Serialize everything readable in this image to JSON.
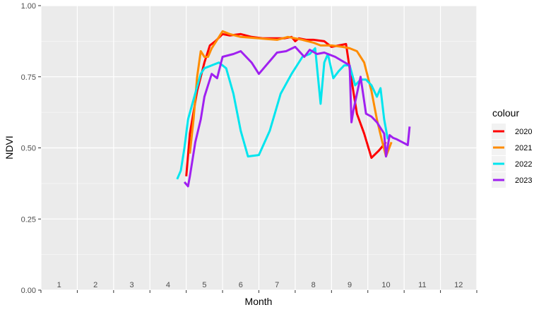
{
  "chart_data": {
    "type": "line",
    "xlabel": "Month",
    "ylabel": "NDVI",
    "xlim": [
      0.5,
      12.5
    ],
    "ylim": [
      0,
      1
    ],
    "y_ticks": [
      {
        "value": 0,
        "label": "0.00"
      },
      {
        "value": 0.25,
        "label": "0.25"
      },
      {
        "value": 0.5,
        "label": "0.50"
      },
      {
        "value": 0.75,
        "label": "0.75"
      },
      {
        "value": 1,
        "label": "1.00"
      }
    ],
    "x_tick_labels": [
      "1",
      "2",
      "3",
      "4",
      "5",
      "6",
      "7",
      "8",
      "9",
      "10",
      "11",
      "12"
    ],
    "grid": true,
    "legend": {
      "title": "colour",
      "position": "right"
    },
    "series": [
      {
        "name": "2020",
        "color": "#ff0000",
        "x": [
          4.5,
          4.6,
          4.8,
          5.0,
          5.15,
          5.3,
          5.5,
          5.7,
          6.0,
          6.3,
          6.6,
          7.0,
          7.2,
          7.4,
          7.5,
          7.6,
          7.8,
          8.0,
          8.3,
          8.5,
          8.7,
          8.9,
          9.0,
          9.2,
          9.4,
          9.6,
          9.8,
          10.0
        ],
        "y": [
          0.4,
          0.55,
          0.7,
          0.8,
          0.86,
          0.875,
          0.9,
          0.895,
          0.9,
          0.89,
          0.885,
          0.885,
          0.885,
          0.89,
          0.875,
          0.885,
          0.88,
          0.88,
          0.875,
          0.855,
          0.86,
          0.865,
          0.78,
          0.62,
          0.55,
          0.465,
          0.49,
          0.52
        ]
      },
      {
        "name": "2021",
        "color": "#ff8c00",
        "x": [
          4.6,
          4.7,
          4.8,
          4.9,
          5.0,
          5.1,
          5.2,
          5.35,
          5.5,
          5.7,
          6.0,
          6.5,
          7.0,
          7.3,
          7.5,
          7.7,
          8.0,
          8.2,
          8.5,
          8.8,
          9.0,
          9.2,
          9.4,
          9.6,
          9.75,
          9.9,
          10.0,
          10.15
        ],
        "y": [
          0.48,
          0.6,
          0.75,
          0.84,
          0.82,
          0.82,
          0.85,
          0.88,
          0.91,
          0.9,
          0.89,
          0.885,
          0.88,
          0.89,
          0.885,
          0.88,
          0.87,
          0.86,
          0.86,
          0.855,
          0.85,
          0.84,
          0.8,
          0.7,
          0.6,
          0.52,
          0.47,
          0.52
        ]
      },
      {
        "name": "2022",
        "color": "#00e5ee",
        "x": [
          4.25,
          4.35,
          4.45,
          4.55,
          4.7,
          4.9,
          5.0,
          5.2,
          5.4,
          5.6,
          5.8,
          6.0,
          6.2,
          6.5,
          6.8,
          7.1,
          7.4,
          7.7,
          7.9,
          8.05,
          8.2,
          8.3,
          8.4,
          8.55,
          8.7,
          8.85,
          9.0,
          9.15,
          9.3,
          9.45,
          9.6,
          9.75,
          9.85,
          9.95,
          10.05
        ],
        "y": [
          0.39,
          0.42,
          0.5,
          0.6,
          0.67,
          0.76,
          0.78,
          0.79,
          0.8,
          0.78,
          0.69,
          0.56,
          0.47,
          0.475,
          0.56,
          0.69,
          0.76,
          0.82,
          0.83,
          0.85,
          0.655,
          0.8,
          0.83,
          0.745,
          0.77,
          0.79,
          0.79,
          0.72,
          0.74,
          0.74,
          0.72,
          0.68,
          0.71,
          0.6,
          0.53
        ]
      },
      {
        "name": "2023",
        "color": "#a020f0",
        "x": [
          4.45,
          4.55,
          4.6,
          4.75,
          4.9,
          5.0,
          5.1,
          5.2,
          5.35,
          5.5,
          5.8,
          6.0,
          6.3,
          6.5,
          7.0,
          7.25,
          7.5,
          7.75,
          7.9,
          8.1,
          8.3,
          8.6,
          9.0,
          9.05,
          9.1,
          9.2,
          9.3,
          9.45,
          9.6,
          9.75,
          9.85,
          9.95,
          10.0,
          10.1,
          10.2,
          10.3,
          10.45,
          10.6,
          10.65
        ],
        "y": [
          0.38,
          0.365,
          0.4,
          0.52,
          0.6,
          0.68,
          0.72,
          0.76,
          0.745,
          0.82,
          0.83,
          0.84,
          0.8,
          0.76,
          0.835,
          0.84,
          0.855,
          0.82,
          0.845,
          0.83,
          0.835,
          0.82,
          0.79,
          0.59,
          0.63,
          0.69,
          0.75,
          0.62,
          0.61,
          0.59,
          0.57,
          0.55,
          0.47,
          0.545,
          0.535,
          0.53,
          0.52,
          0.51,
          0.575
        ]
      }
    ]
  }
}
